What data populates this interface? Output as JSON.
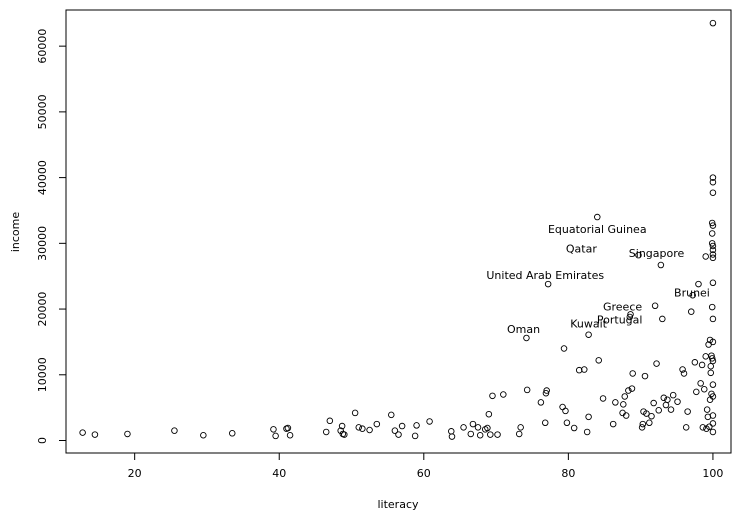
{
  "chart_data": {
    "type": "scatter",
    "title": "",
    "xlabel": "literacy",
    "ylabel": "income",
    "xlim": [
      10.5,
      102.5
    ],
    "ylim": [
      -1900,
      65500
    ],
    "xticks": [
      20,
      40,
      60,
      80,
      100
    ],
    "yticks": [
      0,
      10000,
      20000,
      30000,
      40000,
      50000,
      60000
    ],
    "xtick_labels": [
      "20",
      "40",
      "60",
      "80",
      "100"
    ],
    "ytick_labels": [
      "0",
      "10000",
      "20000",
      "30000",
      "40000",
      "50000",
      "60000"
    ],
    "grid": false,
    "legend": "none",
    "points": [
      [
        12.8,
        1200
      ],
      [
        14.5,
        900
      ],
      [
        19,
        1000
      ],
      [
        25.5,
        1500
      ],
      [
        29.5,
        800
      ],
      [
        33.5,
        1100
      ],
      [
        39.2,
        1700
      ],
      [
        39.5,
        700
      ],
      [
        41,
        1800
      ],
      [
        41.2,
        1900
      ],
      [
        41.5,
        800
      ],
      [
        46.5,
        1300
      ],
      [
        47,
        3000
      ],
      [
        48.5,
        1500
      ],
      [
        48.7,
        2200
      ],
      [
        48.8,
        1000
      ],
      [
        49,
        900
      ],
      [
        50.5,
        4200
      ],
      [
        51,
        2000
      ],
      [
        51.5,
        1800
      ],
      [
        52.5,
        1600
      ],
      [
        53.5,
        2500
      ],
      [
        55.5,
        3900
      ],
      [
        56,
        1500
      ],
      [
        56.5,
        900
      ],
      [
        57,
        2200
      ],
      [
        58.8,
        700
      ],
      [
        59,
        2300
      ],
      [
        60.8,
        2900
      ],
      [
        63.8,
        1400
      ],
      [
        63.9,
        600
      ],
      [
        65.5,
        2000
      ],
      [
        66.5,
        1000
      ],
      [
        66.8,
        2500
      ],
      [
        67.5,
        2000
      ],
      [
        67.8,
        800
      ],
      [
        68.5,
        1700
      ],
      [
        68.8,
        1900
      ],
      [
        69,
        4000
      ],
      [
        69.2,
        900
      ],
      [
        69.5,
        6800
      ],
      [
        70.2,
        900
      ],
      [
        71,
        7000
      ],
      [
        73.2,
        1000
      ],
      [
        73.4,
        2000
      ],
      [
        74.2,
        15600
      ],
      [
        74.3,
        7700
      ],
      [
        76.2,
        5800
      ],
      [
        76.8,
        2700
      ],
      [
        76.9,
        7200
      ],
      [
        77,
        7600
      ],
      [
        77.2,
        23800
      ],
      [
        79.2,
        5100
      ],
      [
        79.4,
        14000
      ],
      [
        79.6,
        4500
      ],
      [
        79.8,
        2700
      ],
      [
        80.8,
        1900
      ],
      [
        81.5,
        10700
      ],
      [
        82.2,
        10800
      ],
      [
        82.6,
        1300
      ],
      [
        82.8,
        3600
      ],
      [
        82.8,
        16100
      ],
      [
        84,
        34000
      ],
      [
        84.2,
        12200
      ],
      [
        84.8,
        6400
      ],
      [
        86.2,
        2500
      ],
      [
        86.5,
        5800
      ],
      [
        87.5,
        4200
      ],
      [
        87.6,
        5500
      ],
      [
        87.8,
        6700
      ],
      [
        88,
        3800
      ],
      [
        88.3,
        7600
      ],
      [
        88.5,
        18800
      ],
      [
        88.6,
        19200
      ],
      [
        88.8,
        7900
      ],
      [
        88.9,
        10200
      ],
      [
        89.7,
        28200
      ],
      [
        90.2,
        2000
      ],
      [
        90.3,
        2500
      ],
      [
        90.4,
        4400
      ],
      [
        90.6,
        9800
      ],
      [
        90.8,
        4100
      ],
      [
        91.2,
        2700
      ],
      [
        91.5,
        3700
      ],
      [
        91.8,
        5700
      ],
      [
        92,
        20500
      ],
      [
        92.2,
        11700
      ],
      [
        92.5,
        4600
      ],
      [
        92.8,
        26700
      ],
      [
        93,
        18500
      ],
      [
        93.2,
        6500
      ],
      [
        93.5,
        5400
      ],
      [
        93.7,
        6200
      ],
      [
        94.2,
        4700
      ],
      [
        94.5,
        6900
      ],
      [
        95.1,
        5900
      ],
      [
        95.8,
        10800
      ],
      [
        96,
        10200
      ],
      [
        96.3,
        2000
      ],
      [
        96.5,
        4400
      ],
      [
        97,
        19600
      ],
      [
        97.2,
        22100
      ],
      [
        97.5,
        11900
      ],
      [
        97.7,
        7400
      ],
      [
        98,
        23800
      ],
      [
        98.3,
        8700
      ],
      [
        98.5,
        11500
      ],
      [
        98.6,
        2000
      ],
      [
        98.8,
        7800
      ],
      [
        99,
        12800
      ],
      [
        99,
        28000
      ],
      [
        99.1,
        1800
      ],
      [
        99.2,
        4700
      ],
      [
        99.3,
        3600
      ],
      [
        99.4,
        14600
      ],
      [
        99.5,
        2100
      ],
      [
        99.6,
        6200
      ],
      [
        99.6,
        15300
      ],
      [
        99.7,
        10300
      ],
      [
        99.7,
        11300
      ],
      [
        99.8,
        12900
      ],
      [
        99.8,
        7100
      ],
      [
        99.9,
        12500
      ],
      [
        99.9,
        20300
      ],
      [
        99.9,
        30000
      ],
      [
        99.9,
        31500
      ],
      [
        99.9,
        33100
      ],
      [
        100,
        63500
      ],
      [
        100,
        40000
      ],
      [
        100,
        39300
      ],
      [
        100,
        37700
      ],
      [
        100,
        32700
      ],
      [
        100,
        29600
      ],
      [
        100,
        29000
      ],
      [
        100,
        28300
      ],
      [
        100,
        27800
      ],
      [
        100,
        24000
      ],
      [
        100,
        18500
      ],
      [
        100,
        15000
      ],
      [
        100,
        12100
      ],
      [
        100,
        8500
      ],
      [
        100,
        6700
      ],
      [
        100,
        3800
      ],
      [
        100,
        2600
      ],
      [
        100,
        1300
      ]
    ],
    "annotations": [
      {
        "label": "Equatorial Guinea",
        "x": 84,
        "y": 32200
      },
      {
        "label": "Qatar",
        "x": 81.8,
        "y": 29200
      },
      {
        "label": "Singapore",
        "x": 92.2,
        "y": 28500
      },
      {
        "label": "United Arab Emirates",
        "x": 76.8,
        "y": 25200
      },
      {
        "label": "Brunei",
        "x": 97.1,
        "y": 22500
      },
      {
        "label": "Greece",
        "x": 87.5,
        "y": 20400
      },
      {
        "label": "Portugal",
        "x": 87.1,
        "y": 18400
      },
      {
        "label": "Kuwait",
        "x": 82.8,
        "y": 17800
      },
      {
        "label": "Oman",
        "x": 73.8,
        "y": 17000
      }
    ]
  }
}
